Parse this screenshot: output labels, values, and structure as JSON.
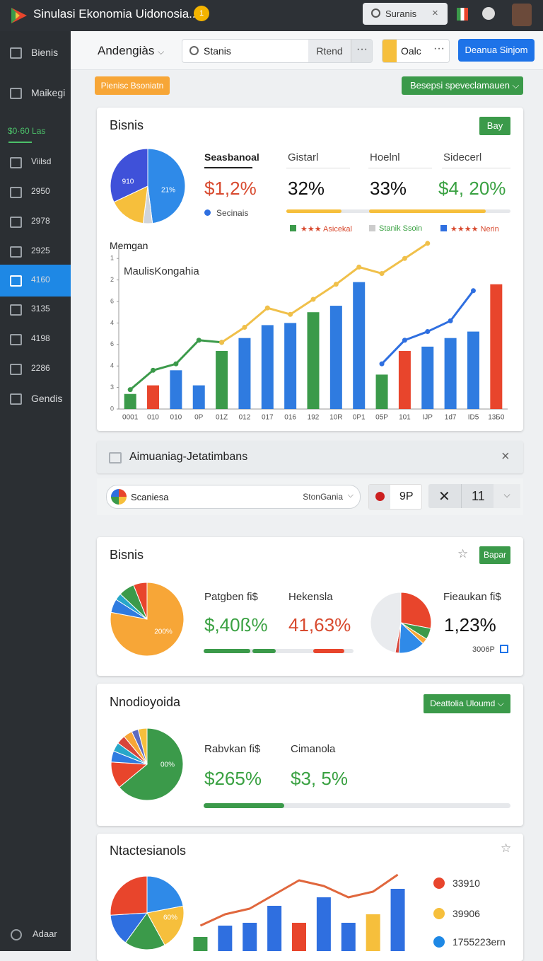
{
  "topbar": {
    "title": "Sinulasi Ekonomia Uidonosia...",
    "badge": "1",
    "search": "Suranis"
  },
  "sidebar": {
    "items": [
      "Bienis",
      "Maikegi",
      "$0·60 Las",
      "Viilsd",
      "2950",
      "2978",
      "2925",
      "4160",
      "3135",
      "4198",
      "2286",
      "Gendis"
    ],
    "footer": "Adaar"
  },
  "toolbar": {
    "dropdown": "Andengiàs",
    "search": "Stanis",
    "tab": "Rtend",
    "calc": "Oalc",
    "button": "Deanua Sinjom",
    "tag": "Pienisc Bsoniatn",
    "filter": "Besepsi speveclamauen"
  },
  "card1": {
    "title": "Bisnis",
    "button": "Bay",
    "pie": {
      "values": [
        48,
        4,
        16,
        32
      ],
      "colors": [
        "#2f8ae8",
        "#d0d4da",
        "#f6bf3c",
        "#3f51d9"
      ],
      "labels": [
        "910",
        "21%"
      ],
      "legend": "Secinais"
    },
    "stats": [
      {
        "label": "Seasbanoal",
        "value": "$1,2%"
      },
      {
        "label": "Gistarl",
        "value": "32%"
      },
      {
        "label": "Hoelnl",
        "value": "33%"
      },
      {
        "label": "Sidecerl",
        "value": "$4, 20%"
      }
    ],
    "legend": [
      "★★★ Asicekal",
      "Stanik Ssoin",
      "★★★★ Nerin"
    ],
    "chart": {
      "type": "bar",
      "title": "Memgan",
      "subtitle": "MaulisKongahia",
      "categories": [
        "0001",
        "010",
        "010",
        "0P",
        "01Z",
        "012",
        "017",
        "016",
        "192",
        "10R",
        "0P1",
        "05P",
        "101",
        "IJP",
        "1d7",
        "ID5",
        "13Б0"
      ],
      "ylim": [
        0,
        7.5
      ],
      "yticks": [
        {
          "value": 7,
          "label": "1"
        },
        {
          "value": 6,
          "label": "2"
        },
        {
          "value": 5,
          "label": "6"
        },
        {
          "value": 4,
          "label": "4"
        },
        {
          "value": 3,
          "label": "6"
        },
        {
          "value": 2,
          "label": "4"
        },
        {
          "value": 1,
          "label": "3"
        },
        0
      ],
      "bars": {
        "values": [
          0.7,
          1.1,
          1.8,
          1.1,
          2.7,
          3.3,
          3.9,
          4.0,
          4.5,
          4.8,
          5.9,
          1.6,
          2.7,
          2.9,
          3.3,
          3.6,
          5.8
        ],
        "colors": [
          "#3b9a4a",
          "#e8452c",
          "#2f7be0",
          "#2f7be0",
          "#3b9a4a",
          "#2f7be0",
          "#2f7be0",
          "#2f7be0",
          "#3b9a4a",
          "#2f7be0",
          "#2f7be0",
          "#3b9a4a",
          "#e8452c",
          "#2f7be0",
          "#2f7be0",
          "#2f7be0",
          "#e8452c"
        ]
      },
      "series": [
        {
          "color": "#3b9a4a",
          "markers": true,
          "values": [
            0.9,
            1.8,
            2.1,
            3.2,
            3.1,
            null,
            null,
            null,
            null,
            null,
            null,
            null,
            null,
            null,
            null,
            null,
            null
          ]
        },
        {
          "color": "#f0c04a",
          "markers": true,
          "values": [
            null,
            null,
            null,
            null,
            3.1,
            3.8,
            4.7,
            4.4,
            5.1,
            5.8,
            6.6,
            6.3,
            7.0,
            7.7,
            null,
            null,
            null
          ]
        },
        {
          "color": "#2f6fe0",
          "markers": true,
          "values": [
            null,
            null,
            null,
            null,
            null,
            null,
            null,
            null,
            null,
            null,
            null,
            2.1,
            3.2,
            3.6,
            4.1,
            5.5,
            null
          ]
        }
      ]
    }
  },
  "notice": {
    "text": "Aimuaniag-Jetatimbans"
  },
  "filters": {
    "select": "Scaniesa",
    "option": "StonGania",
    "code": "9P",
    "count": "11"
  },
  "card2": {
    "title": "Bisnis",
    "button": "Bapar",
    "pie1": {
      "values": [
        78,
        6,
        3,
        7,
        6
      ],
      "colors": [
        "#f7a637",
        "#2f7be0",
        "#27a7c9",
        "#3b9a4a",
        "#e8452c"
      ],
      "label": "200%"
    },
    "pie2": {
      "values": [
        28,
        6,
        3,
        14,
        2,
        47
      ],
      "colors": [
        "#e8452c",
        "#3b9a4a",
        "#f7a637",
        "#2f8ae8",
        "#d8453a",
        "#e9ebee"
      ]
    },
    "stats": [
      {
        "label": "Patgben ﬁ$",
        "value": "$,40ß%"
      },
      {
        "label": "Hekensla",
        "value": "41,63%"
      },
      {
        "label": "Fieaukan ﬁ$",
        "value": "1,23%"
      }
    ],
    "note": "3006P"
  },
  "card3": {
    "title": "Nnodioyoida",
    "dropdown": "Deattolia Uloumd",
    "pie": {
      "values": [
        64,
        12,
        5,
        4,
        4,
        4,
        3,
        4
      ],
      "colors": [
        "#3b9a4a",
        "#e8452c",
        "#2f7be0",
        "#27a7c9",
        "#d8453a",
        "#f7a637",
        "#5c6bc0",
        "#f6bf3c"
      ],
      "label": "00%"
    },
    "stats": [
      {
        "label": "Rabvkan ﬁ$",
        "value": "$265%"
      },
      {
        "label": "Cimanola",
        "value": "$3, 5%"
      }
    ]
  },
  "card4": {
    "title": "Ntactesianols",
    "pie": {
      "values": [
        22,
        20,
        18,
        14,
        26
      ],
      "colors": [
        "#2f8ae8",
        "#f6bf3c",
        "#3b9a4a",
        "#2f6fe0",
        "#e8452c"
      ],
      "label": "60%"
    },
    "chart": {
      "type": "bar",
      "ylim": [
        0,
        30
      ],
      "bars": {
        "values": [
          5,
          9,
          10,
          16,
          10,
          19,
          10,
          13,
          22
        ],
        "colors": [
          "#3b9a4a",
          "#2f6fe0",
          "#2f6fe0",
          "#2f6fe0",
          "#e8452c",
          "#2f6fe0",
          "#2f6fe0",
          "#f6bf3c",
          "#2f6fe0"
        ]
      },
      "series": [
        {
          "color": "#e0673d",
          "markers": false,
          "values": [
            9,
            13,
            15,
            20,
            25,
            23,
            19,
            21,
            27
          ]
        }
      ]
    },
    "legend": [
      {
        "label": "33910",
        "color": "#e8452c"
      },
      {
        "label": "39906",
        "color": "#f6bf3c"
      },
      {
        "label": "1755223ern",
        "color": "#1e88e5"
      }
    ]
  }
}
